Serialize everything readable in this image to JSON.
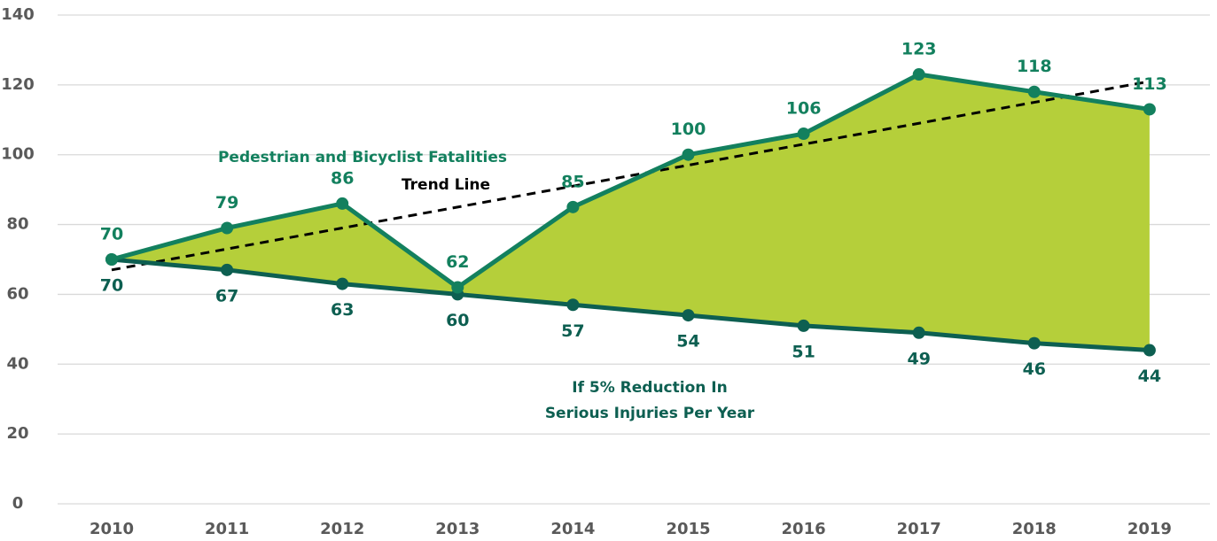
{
  "chart_data": {
    "type": "line",
    "categories": [
      "2010",
      "2011",
      "2012",
      "2013",
      "2014",
      "2015",
      "2016",
      "2017",
      "2018",
      "2019"
    ],
    "series": [
      {
        "name": "Pedestrian and Bicyclist Fatalities",
        "color": "#13805e",
        "values": [
          70,
          79,
          86,
          62,
          85,
          100,
          106,
          123,
          118,
          113
        ]
      },
      {
        "name": "If 5% Reduction In Serious Injuries Per Year",
        "color": "#0d5f51",
        "values": [
          70,
          67,
          63,
          60,
          57,
          54,
          51,
          49,
          46,
          44
        ]
      },
      {
        "name": "Trend Line",
        "color": "#000000",
        "dashed": true,
        "values": [
          67,
          73,
          79,
          85,
          91,
          97,
          103,
          109,
          115,
          121
        ]
      }
    ],
    "annotations": [
      "Pedestrian and Bicyclist Fatalities",
      "Trend Line",
      "If 5% Reduction In",
      "Serious Injuries Per Year"
    ],
    "fill_between": {
      "color": "#b5cf3a"
    },
    "ylim": [
      0,
      140
    ],
    "yticks": [
      0,
      20,
      40,
      60,
      80,
      100,
      120,
      140
    ],
    "grid": true
  }
}
